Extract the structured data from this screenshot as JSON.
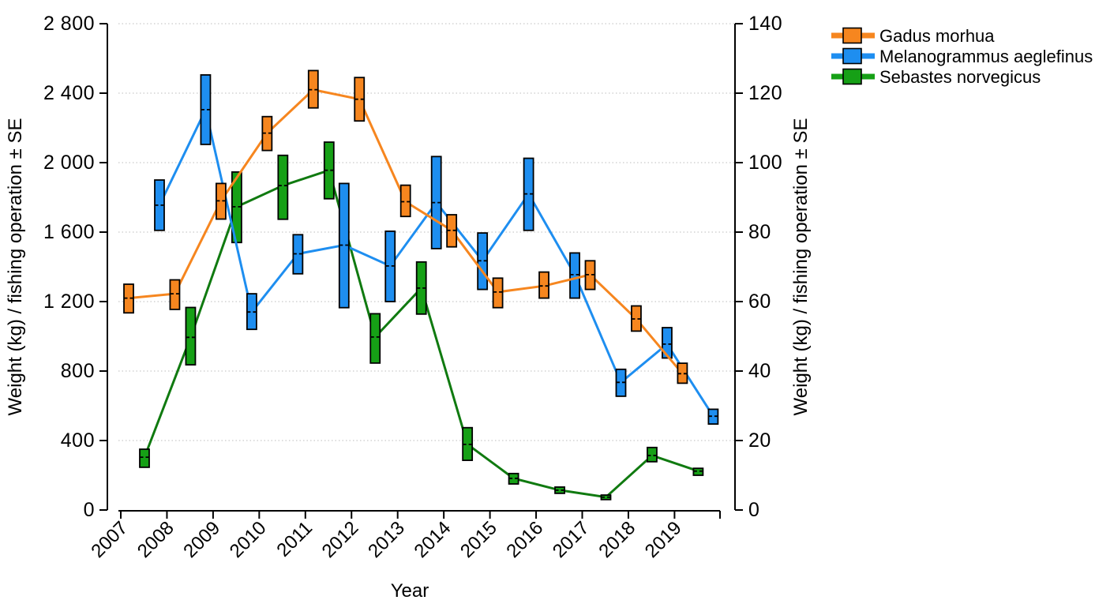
{
  "chart": {
    "left_axis": {
      "title": "Weight (kg) / fishing operation ± SE",
      "tick_labels": [
        "0",
        "400",
        "800",
        "1 200",
        "1 600",
        "2 000",
        "2 400",
        "2 800"
      ],
      "min": 0,
      "max": 2800,
      "step": 400
    },
    "right_axis": {
      "title": "Weight (kg) / fishing operation ± SE",
      "tick_labels": [
        "0",
        "20",
        "40",
        "60",
        "80",
        "100",
        "120",
        "140"
      ],
      "min": 0,
      "max": 140,
      "step": 20
    },
    "x_axis": {
      "title": "Year"
    },
    "legend": [
      {
        "label": "Gadus morhua",
        "color": "#F6861F"
      },
      {
        "label": "Melanogrammus aeglefinus",
        "color": "#1E8EF0"
      },
      {
        "label": "Sebastes norvegicus",
        "color": "#16A016"
      }
    ],
    "colors": {
      "gadus": "#F6861F",
      "melanogrammus": "#1E8EF0",
      "sebastes_fill": "#16A016",
      "sebastes_line": "#107A10",
      "gridline": "#c9c9c9",
      "axis": "#000000"
    }
  },
  "chart_data": {
    "type": "line",
    "title": "",
    "xlabel": "Year",
    "ylabel_left": "Weight (kg) / fishing operation ± SE",
    "ylabel_right": "Weight (kg) / fishing operation ± SE",
    "ylim_left": [
      0,
      2800
    ],
    "ylim_right": [
      0,
      140
    ],
    "grid": "dotted horizontal at every 400 kg (left) / 20 kg (right)",
    "legend_position": "top-right outside plot",
    "marker_style": "vertical box spanning mean ± SE with black border and dashed black mean line, connected by colored lines",
    "categories": [
      "2007",
      "2008",
      "2009",
      "2010",
      "2011",
      "2012",
      "2013",
      "2014",
      "2015",
      "2016",
      "2017",
      "2018",
      "2019"
    ],
    "series": [
      {
        "name": "Gadus morhua",
        "axis": "left",
        "color": "#F6861F",
        "line_color": "#F6861F",
        "mean": [
          1220,
          1245,
          1780,
          2170,
          2420,
          2365,
          1775,
          1610,
          1255,
          1290,
          1355,
          1100,
          785
        ],
        "lo": [
          1135,
          1155,
          1675,
          2070,
          2315,
          2240,
          1690,
          1515,
          1165,
          1220,
          1270,
          1030,
          730
        ],
        "hi": [
          1300,
          1325,
          1880,
          2265,
          2530,
          2490,
          1870,
          1700,
          1335,
          1370,
          1435,
          1175,
          845
        ]
      },
      {
        "name": "Melanogrammus aeglefinus",
        "axis": "left",
        "color": "#1E8EF0",
        "line_color": "#1E8EF0",
        "mean": [
          1755,
          2305,
          1140,
          1475,
          1525,
          1405,
          1770,
          1435,
          1820,
          1355,
          735,
          955,
          540
        ],
        "lo": [
          1610,
          2105,
          1040,
          1360,
          1165,
          1200,
          1505,
          1270,
          1610,
          1220,
          655,
          875,
          495
        ],
        "hi": [
          1900,
          2505,
          1245,
          1585,
          1880,
          1605,
          2035,
          1595,
          2025,
          1480,
          810,
          1050,
          580
        ]
      },
      {
        "name": "Sebastes norvegicus",
        "axis": "right",
        "color": "#16A016",
        "line_color": "#107A10",
        "mean": [
          15.2,
          49.7,
          87.3,
          93.4,
          97.8,
          49.8,
          63.9,
          18.9,
          9.1,
          5.7,
          3.7,
          15.7,
          11.2
        ],
        "lo": [
          12.3,
          41.8,
          77.0,
          83.7,
          89.6,
          42.3,
          56.4,
          14.3,
          7.5,
          4.8,
          3.0,
          13.9,
          10.0
        ],
        "hi": [
          17.5,
          58.3,
          97.3,
          102.1,
          105.9,
          56.5,
          71.4,
          23.7,
          10.5,
          6.6,
          4.3,
          18.0,
          12.0
        ]
      }
    ]
  }
}
